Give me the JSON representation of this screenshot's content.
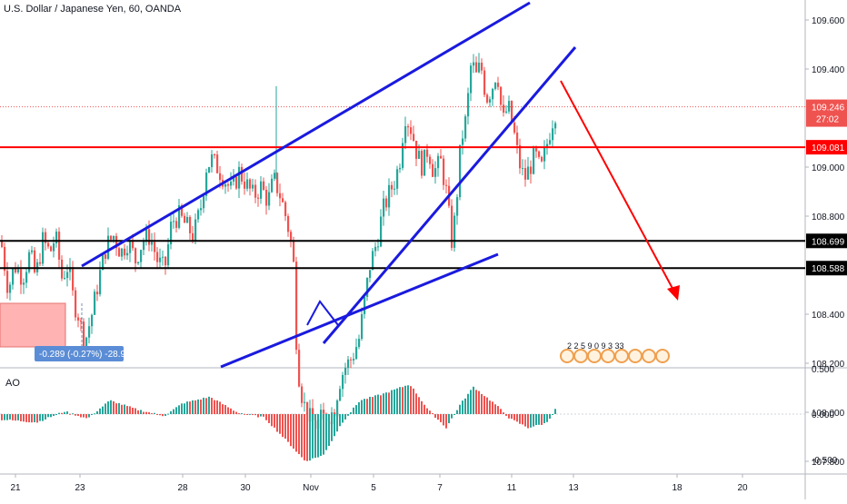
{
  "header": {
    "title": "U.S. Dollar / Japanese Yen, 60, OANDA"
  },
  "colors": {
    "bull": "#26a69a",
    "bear": "#ef5350",
    "price_bg": "#ef5350",
    "trend": "#1a1adf",
    "arrow": "#ff0000",
    "support": "#000000",
    "resistance": "#ff0000",
    "measure_fill": "#ffb3b3",
    "measure_badge": "#5b8dd6"
  },
  "price_scale": {
    "ticks": [
      "109.600",
      "109.400",
      "109.000",
      "108.800",
      "108.400",
      "108.200",
      "108.000",
      "107.800"
    ],
    "last_price": "109.246",
    "countdown": "27:02",
    "level_red": "109.081",
    "level_black_1": "108.699",
    "level_black_2": "108.588"
  },
  "time_axis": {
    "ticks": [
      "21",
      "23",
      "28",
      "30",
      "Nov",
      "5",
      "7",
      "11",
      "13",
      "18",
      "20"
    ]
  },
  "measure": {
    "label": "-0.289 (-0.27%) -28.9"
  },
  "indicator": {
    "name": "AO",
    "ticks": [
      "0.500",
      "0.000",
      "-0.500"
    ]
  },
  "events": {
    "label": "2  2  5  9  0  9  3  33"
  },
  "chart_data": {
    "type": "candlestick",
    "title": "U.S. Dollar / Japanese Yen, 60, OANDA",
    "ylim": [
      107.7,
      109.75
    ],
    "x_dates": [
      "Oct 21",
      "Oct 23",
      "Oct 28",
      "Oct 30",
      "Nov 1",
      "Nov 5",
      "Nov 7",
      "Nov 11",
      "Nov 13",
      "Nov 18",
      "Nov 20"
    ],
    "close_path": [
      [
        0,
        108.7
      ],
      [
        8,
        108.5
      ],
      [
        15,
        108.6
      ],
      [
        24,
        108.55
      ],
      [
        32,
        108.65
      ],
      [
        38,
        108.55
      ],
      [
        46,
        108.7
      ],
      [
        54,
        108.65
      ],
      [
        60,
        108.72
      ],
      [
        67,
        108.55
      ],
      [
        74,
        108.6
      ],
      [
        80,
        108.45
      ],
      [
        85,
        108.4
      ],
      [
        92,
        108.28
      ],
      [
        100,
        108.4
      ],
      [
        108,
        108.55
      ],
      [
        116,
        108.68
      ],
      [
        124,
        108.72
      ],
      [
        132,
        108.65
      ],
      [
        140,
        108.7
      ],
      [
        148,
        108.62
      ],
      [
        156,
        108.7
      ],
      [
        164,
        108.72
      ],
      [
        172,
        108.62
      ],
      [
        180,
        108.58
      ],
      [
        188,
        108.78
      ],
      [
        196,
        108.8
      ],
      [
        204,
        108.76
      ],
      [
        212,
        108.72
      ],
      [
        220,
        108.84
      ],
      [
        226,
        109.0
      ],
      [
        232,
        109.03
      ],
      [
        238,
        109.0
      ],
      [
        246,
        108.95
      ],
      [
        254,
        108.9
      ],
      [
        262,
        108.98
      ],
      [
        270,
        108.93
      ],
      [
        278,
        108.88
      ],
      [
        286,
        108.92
      ],
      [
        294,
        108.86
      ],
      [
        300,
        108.95
      ],
      [
        306,
        108.9
      ],
      [
        312,
        108.82
      ],
      [
        318,
        108.72
      ],
      [
        322,
        108.6
      ],
      [
        326,
        108.2
      ],
      [
        332,
        108.05
      ],
      [
        338,
        107.98
      ],
      [
        346,
        107.95
      ],
      [
        352,
        107.97
      ],
      [
        360,
        107.99
      ],
      [
        366,
        108.0
      ],
      [
        372,
        108.12
      ],
      [
        378,
        108.18
      ],
      [
        386,
        108.22
      ],
      [
        394,
        108.3
      ],
      [
        400,
        108.45
      ],
      [
        406,
        108.6
      ],
      [
        414,
        108.7
      ],
      [
        420,
        108.82
      ],
      [
        428,
        108.9
      ],
      [
        434,
        108.95
      ],
      [
        440,
        109.05
      ],
      [
        444,
        109.22
      ],
      [
        452,
        109.15
      ],
      [
        458,
        109.05
      ],
      [
        464,
        109.0
      ],
      [
        470,
        109.08
      ],
      [
        476,
        108.98
      ],
      [
        484,
        109.02
      ],
      [
        490,
        108.9
      ],
      [
        496,
        108.7
      ],
      [
        500,
        108.8
      ],
      [
        506,
        109.1
      ],
      [
        512,
        109.2
      ],
      [
        518,
        109.45
      ],
      [
        522,
        109.36
      ],
      [
        528,
        109.42
      ],
      [
        534,
        109.28
      ],
      [
        540,
        109.32
      ],
      [
        546,
        109.4
      ],
      [
        552,
        109.18
      ],
      [
        558,
        109.25
      ],
      [
        564,
        109.15
      ],
      [
        570,
        109.02
      ],
      [
        576,
        108.95
      ],
      [
        582,
        109.0
      ],
      [
        588,
        109.05
      ],
      [
        594,
        108.98
      ],
      [
        600,
        109.08
      ],
      [
        606,
        109.18
      ],
      [
        612,
        109.246
      ]
    ],
    "annotations": {
      "horizontal_lines": [
        109.081,
        108.699,
        108.588
      ],
      "forecast_arrow": {
        "from": 109.246,
        "to": 108.15
      }
    },
    "ao": {
      "name": "AO",
      "ylim": [
        -0.6,
        0.55
      ]
    }
  }
}
